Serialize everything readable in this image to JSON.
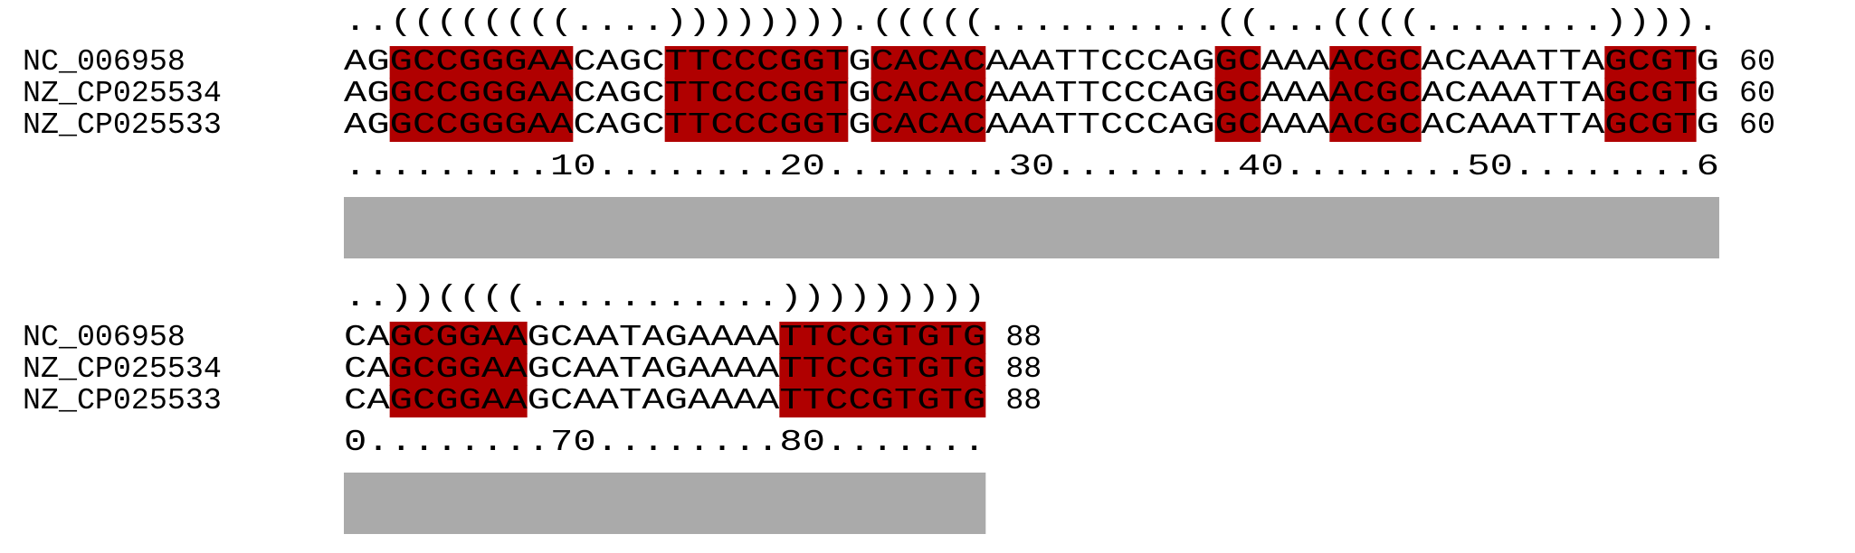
{
  "colors": {
    "pair_highlight": "#b00000",
    "conservation_bar": "#aaaaaa",
    "text": "#000000"
  },
  "blocks": [
    {
      "structure": "..((((((((....)))))))).(((((..........((...((((........)))).",
      "names": [
        "NC_006958",
        "NZ_CP025534",
        "NZ_CP025533"
      ],
      "sequences": [
        "AGGCCGGGAACAGCTTCCCGGTGCACACAAATTCCCAGGCAAAACGCACAAATTAGCGTG",
        "AGGCCGGGAACAGCTTCCCGGTGCACACAAATTCCCAGGCAAAACGCACAAATTAGCGTG",
        "AGGCCGGGAACAGCTTCCCGGTGCACACAAATTCCCAGGCAAAACGCACAAATTAGCGTG"
      ],
      "end_positions": [
        "60",
        "60",
        "60"
      ],
      "ruler": ".........10........20........30........40........50........6",
      "conservation": 1.0
    },
    {
      "structure": "..))((((...........)))))))))",
      "names": [
        "NC_006958",
        "NZ_CP025534",
        "NZ_CP025533"
      ],
      "sequences": [
        "CAGCGGAAGCAATAGAAAATTCCGTGTG",
        "CAGCGGAAGCAATAGAAAATTCCGTGTG",
        "CAGCGGAAGCAATAGAAAATTCCGTGTG"
      ],
      "end_positions": [
        "88",
        "88",
        "88"
      ],
      "ruler": "0........70........80.......",
      "conservation": 1.0
    }
  ]
}
